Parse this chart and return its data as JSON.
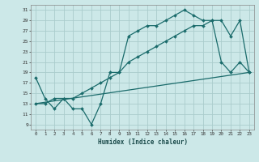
{
  "xlabel": "Humidex (Indice chaleur)",
  "bg_color": "#cce8e8",
  "grid_color": "#aacccc",
  "line_color": "#1a6b6b",
  "xlim": [
    -0.5,
    23.5
  ],
  "ylim": [
    8,
    32
  ],
  "yticks": [
    9,
    11,
    13,
    15,
    17,
    19,
    21,
    23,
    25,
    27,
    29,
    31
  ],
  "xticks": [
    0,
    1,
    2,
    3,
    4,
    5,
    6,
    7,
    8,
    9,
    10,
    11,
    12,
    13,
    14,
    15,
    16,
    17,
    18,
    19,
    20,
    21,
    22,
    23
  ],
  "line1_x": [
    0,
    1,
    2,
    3,
    4,
    5,
    6,
    7,
    8,
    9,
    10,
    11,
    12,
    13,
    14,
    15,
    16,
    17,
    18,
    19,
    20,
    21,
    22,
    23
  ],
  "line1_y": [
    18,
    14,
    12,
    14,
    12,
    12,
    9,
    13,
    19,
    19,
    26,
    27,
    28,
    28,
    29,
    30,
    31,
    30,
    29,
    29,
    21,
    19,
    21,
    19
  ],
  "line2_x": [
    0,
    1,
    2,
    3,
    4,
    5,
    6,
    7,
    8,
    9,
    10,
    11,
    12,
    13,
    14,
    15,
    16,
    17,
    18,
    19,
    20,
    21,
    22,
    23
  ],
  "line2_y": [
    13,
    13,
    14,
    14,
    14,
    15,
    16,
    17,
    18,
    19,
    21,
    22,
    23,
    24,
    25,
    26,
    27,
    28,
    28,
    29,
    29,
    26,
    29,
    19
  ],
  "line3_x": [
    0,
    23
  ],
  "line3_y": [
    13,
    19
  ]
}
